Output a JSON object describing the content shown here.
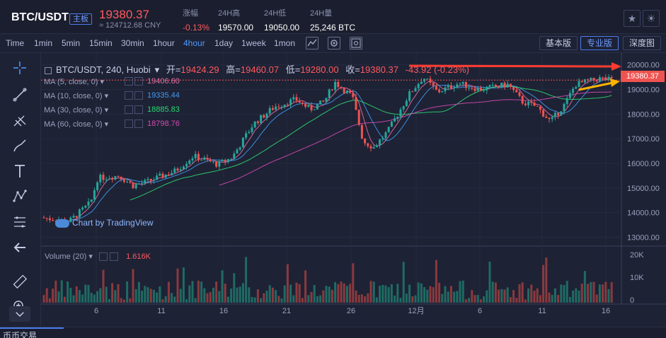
{
  "header": {
    "pair": "BTC/USDT",
    "board_badge": "主板",
    "last_price": "19380.37",
    "cny_price": "≈ 124712.68 CNY",
    "stats": [
      {
        "label": "涨幅",
        "value": "-0.13%",
        "red": true
      },
      {
        "label": "24H高",
        "value": "19570.00",
        "red": false
      },
      {
        "label": "24H低",
        "value": "19050.00",
        "red": false
      },
      {
        "label": "24H量",
        "value": "25,246 BTC",
        "red": false
      }
    ],
    "star_icon": "★",
    "theme_icon": "☀"
  },
  "toolbar": {
    "timeframes": [
      "Time",
      "1min",
      "5min",
      "15min",
      "30min",
      "1hour",
      "4hour",
      "1day",
      "1week",
      "1mon"
    ],
    "active_timeframe": "4hour",
    "basic_label": "基本版",
    "pro_label": "专业版",
    "depth_label": "深度图"
  },
  "chart": {
    "legend_symbol": "BTC/USDT, 240, Huobi",
    "open_label": "开=",
    "open": "19424.29",
    "high_label": "高=",
    "high": "19460.07",
    "low_label": "低=",
    "low": "19280.00",
    "close_label": "收=",
    "close": "19380.37",
    "change": "-43.92 (-0.23%)",
    "ma_rows": [
      {
        "label": "MA (5, close, 0)",
        "value": "19406.60",
        "color": "#e26ea7"
      },
      {
        "label": "MA (10, close, 0)",
        "value": "19335.44",
        "color": "#3e9af0"
      },
      {
        "label": "MA (30, close, 0)",
        "value": "18885.83",
        "color": "#2bd86f"
      },
      {
        "label": "MA (60, close, 0)",
        "value": "18798.76",
        "color": "#d24bb0"
      }
    ],
    "volume_label": "Volume (20)",
    "volume_value": "1.616K",
    "watermark": "Chart by TradingView",
    "current_price_tag": "19380.37",
    "x_labels": [
      "6",
      "11",
      "16",
      "21",
      "26",
      "12月",
      "6",
      "11",
      "16"
    ],
    "y_labels": [
      "20000.00",
      "19000.00",
      "18000.00",
      "17000.00",
      "16000.00",
      "15000.00",
      "14000.00",
      "13000.00"
    ],
    "vol_labels": [
      "20K",
      "10K",
      "0"
    ]
  },
  "bottom": {
    "tab_label": "币币交易"
  },
  "colors": {
    "up": "#26a69a",
    "down": "#ef5350",
    "bg": "#1e2235"
  }
}
